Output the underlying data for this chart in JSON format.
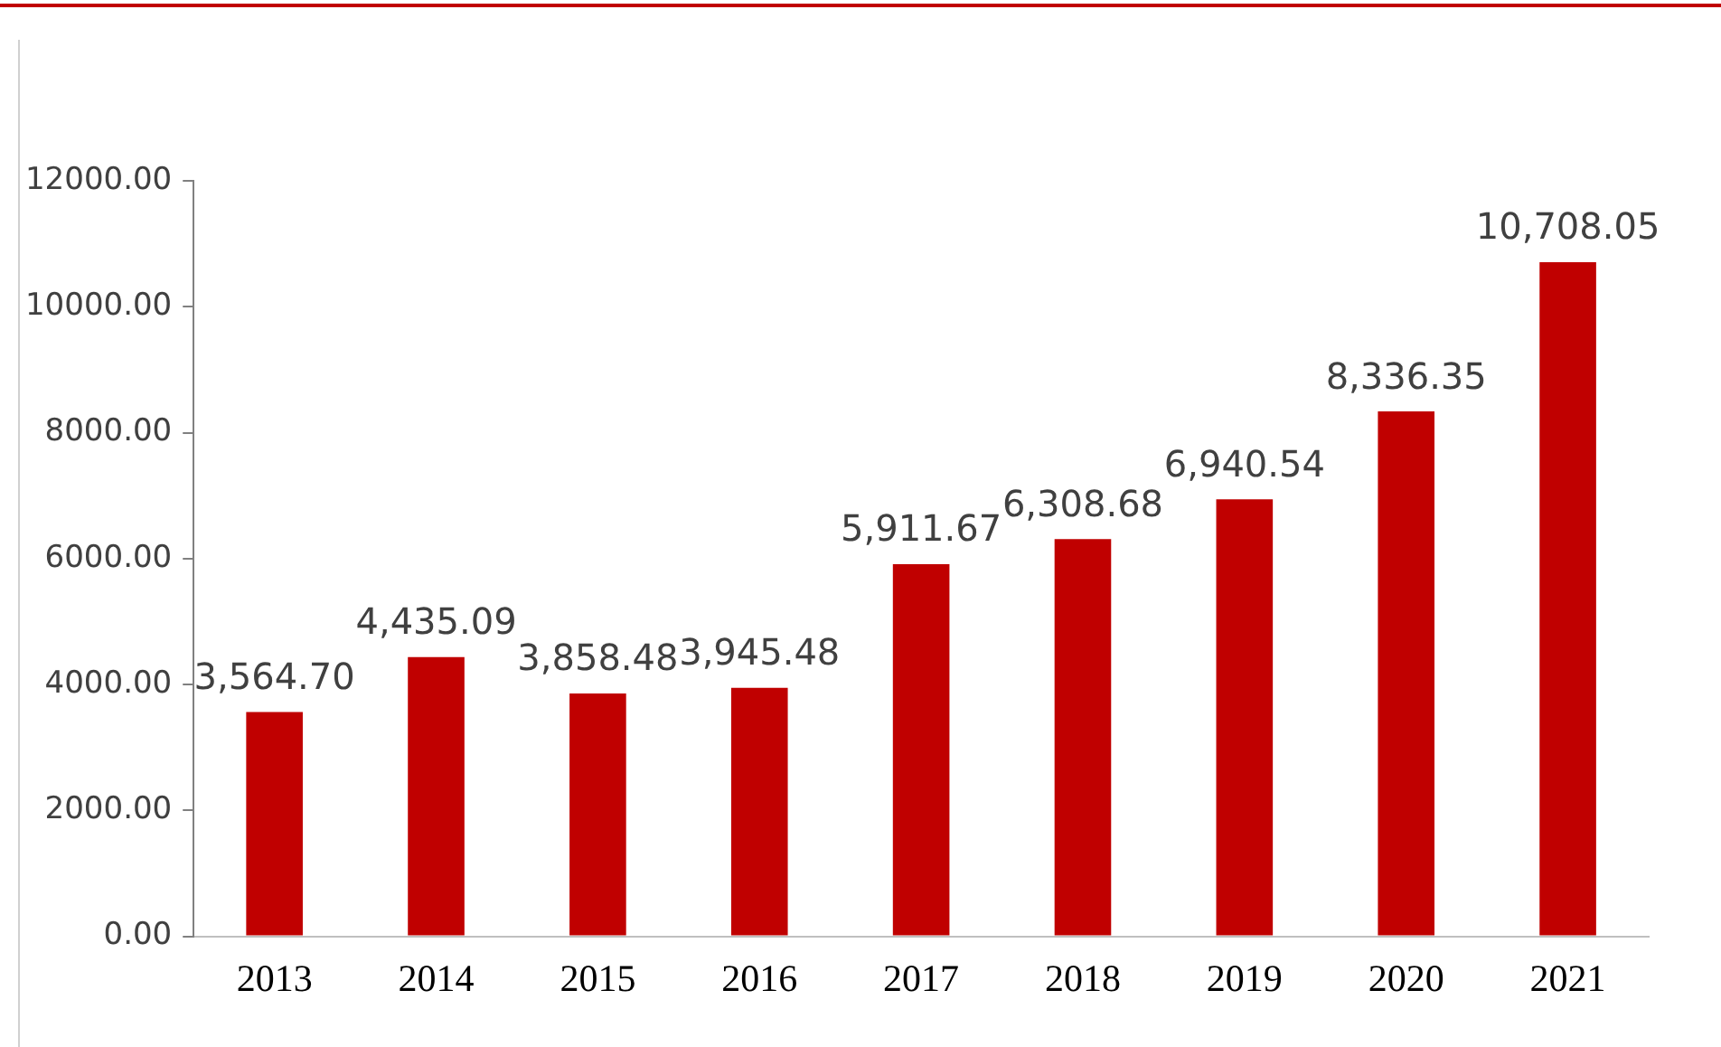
{
  "chart_data": {
    "type": "bar",
    "categories": [
      "2013",
      "2014",
      "2015",
      "2016",
      "2017",
      "2018",
      "2019",
      "2020",
      "2021"
    ],
    "values": [
      3564.7,
      4435.09,
      3858.48,
      3945.48,
      5911.67,
      6308.68,
      6940.54,
      8336.35,
      10708.05
    ],
    "value_labels": [
      "3,564.70",
      "4,435.09",
      "3,858.48",
      "3,945.48",
      "5,911.67",
      "6,308.68",
      "6,940.54",
      "8,336.35",
      "10,708.05"
    ],
    "color": "#c00000",
    "ylim": [
      0,
      12000
    ],
    "yticks": [
      {
        "value": 0,
        "label": "0.00"
      },
      {
        "value": 2000,
        "label": "2000.00"
      },
      {
        "value": 4000,
        "label": "4000.00"
      },
      {
        "value": 6000,
        "label": "6000.00"
      },
      {
        "value": 8000,
        "label": "8000.00"
      },
      {
        "value": 10000,
        "label": "10000.00"
      },
      {
        "value": 12000,
        "label": "12000.00"
      }
    ],
    "grid": false,
    "legend": false
  }
}
